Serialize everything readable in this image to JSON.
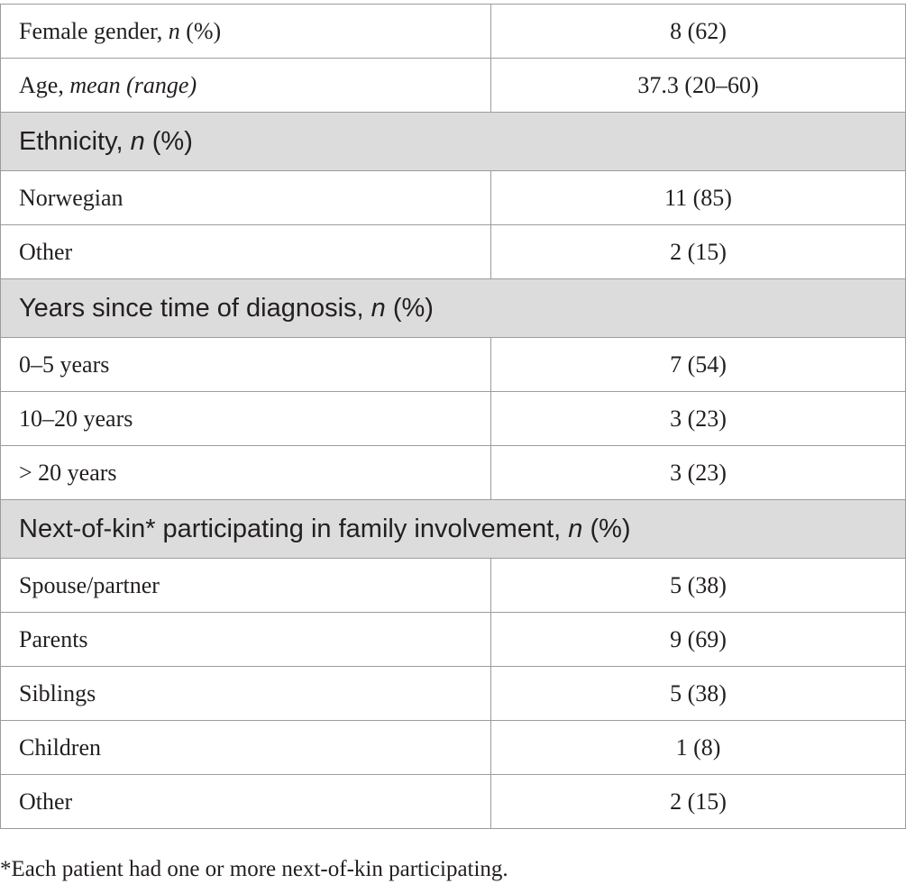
{
  "rows": [
    {
      "type": "data",
      "label": "Female gender, ",
      "label_em": "n",
      "label_tail": " (%)",
      "value": "8 (62)"
    },
    {
      "type": "data",
      "label": "Age, ",
      "label_em": "mean (range)",
      "label_tail": "",
      "value": "37.3 (20–60)"
    },
    {
      "type": "section",
      "label": "Ethnicity, ",
      "label_em": "n",
      "label_tail": " (%)"
    },
    {
      "type": "data",
      "label": "Norwegian",
      "value": "11 (85)"
    },
    {
      "type": "data",
      "label": "Other",
      "value": "2 (15)"
    },
    {
      "type": "section",
      "label": "Years since time of diagnosis, ",
      "label_em": "n",
      "label_tail": " (%)"
    },
    {
      "type": "data",
      "label": "0–5 years",
      "value": "7 (54)"
    },
    {
      "type": "data",
      "label": "10–20 years",
      "value": "3 (23)"
    },
    {
      "type": "data",
      "label": "> 20 years",
      "value": "3 (23)"
    },
    {
      "type": "section",
      "label": "Next-of-kin* participating in family involvement, ",
      "label_em": "n",
      "label_tail": " (%)"
    },
    {
      "type": "data",
      "label": "Spouse/partner",
      "value": "5 (38)"
    },
    {
      "type": "data",
      "label": "Parents",
      "value": "9 (69)"
    },
    {
      "type": "data",
      "label": "Siblings",
      "value": "5 (38)"
    },
    {
      "type": "data",
      "label": "Children",
      "value": "1 (8)"
    },
    {
      "type": "data",
      "label": "Other",
      "value": "2 (15)"
    }
  ],
  "footnote": "*Each patient had one or more next-of-kin participating."
}
